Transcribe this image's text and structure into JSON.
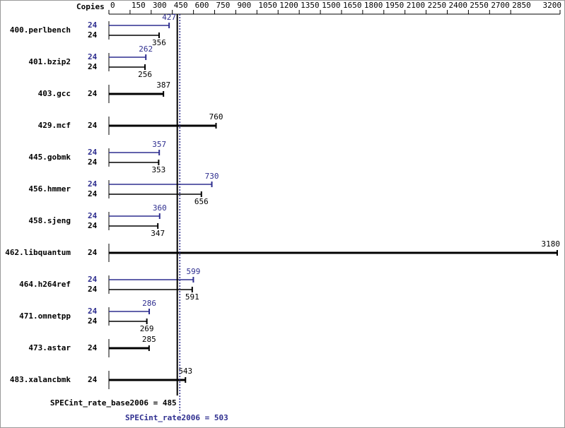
{
  "chart_data": {
    "type": "bar",
    "orientation": "horizontal",
    "copies_label": "Copies",
    "categories": [
      "400.perlbench",
      "401.bzip2",
      "403.gcc",
      "429.mcf",
      "445.gobmk",
      "456.hmmer",
      "458.sjeng",
      "462.libquantum",
      "464.h264ref",
      "471.omnetpp",
      "473.astar",
      "483.xalancbmk"
    ],
    "series": [
      {
        "color": "#2e2e8f",
        "copies": [
          24,
          24,
          null,
          null,
          24,
          24,
          24,
          null,
          24,
          24,
          null,
          null
        ],
        "values": [
          427,
          262,
          null,
          null,
          357,
          730,
          360,
          null,
          599,
          286,
          null,
          null
        ]
      },
      {
        "color": "#000000",
        "copies": [
          24,
          24,
          24,
          24,
          24,
          24,
          24,
          24,
          24,
          24,
          24,
          24
        ],
        "values": [
          356,
          256,
          387,
          760,
          353,
          656,
          347,
          3180,
          591,
          269,
          285,
          543
        ]
      }
    ],
    "xlim": [
      0,
      3200
    ],
    "xticks": [
      0,
      150,
      300,
      450,
      600,
      750,
      900,
      1050,
      1200,
      1350,
      1500,
      1650,
      1800,
      1950,
      2100,
      2250,
      2400,
      2550,
      2700,
      2850,
      3200
    ],
    "reference_lines": [
      {
        "label": "SPECint_rate_base2006 = 485",
        "value": 485,
        "color": "#000000",
        "style": "solid"
      },
      {
        "label": "SPECint_rate2006 = 503",
        "value": 503,
        "color": "#2e2e8f",
        "style": "dotted"
      }
    ]
  }
}
